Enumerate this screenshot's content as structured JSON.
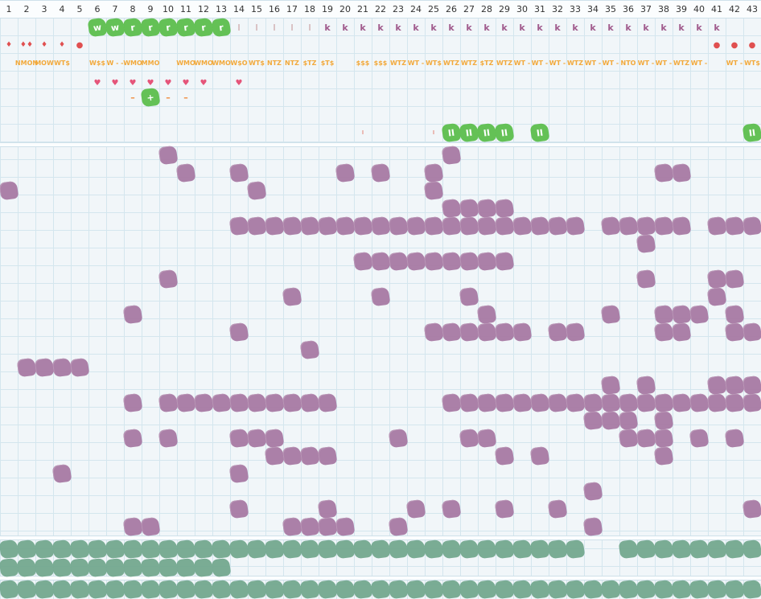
{
  "columns": [
    "1",
    "2",
    "3",
    "4",
    "5",
    "6",
    "7",
    "8",
    "9",
    "10",
    "11",
    "12",
    "13",
    "14",
    "15",
    "16",
    "17",
    "18",
    "19",
    "20",
    "21",
    "22",
    "23",
    "24",
    "25",
    "26",
    "27",
    "28",
    "29",
    "30",
    "31",
    "32",
    "33",
    "34",
    "35",
    "36",
    "37",
    "38",
    "39",
    "40",
    "41",
    "42",
    "43"
  ],
  "colors": {
    "grid_line": "#d4e6ee",
    "background": "#f1f6f9",
    "purple_block": "#a87aa4",
    "green_block": "#5dbf4e",
    "teal_block": "#73a88e",
    "orange_text": "#f2a93b",
    "heart": "#e5557a",
    "k_glyph": "#a05a8c"
  },
  "header_rows": {
    "green_labels": [
      {
        "col": 6,
        "text": "w"
      },
      {
        "col": 7,
        "text": "w"
      },
      {
        "col": 8,
        "text": "r"
      },
      {
        "col": 9,
        "text": "r"
      },
      {
        "col": 10,
        "text": "r"
      },
      {
        "col": 11,
        "text": "r"
      },
      {
        "col": 12,
        "text": "r"
      },
      {
        "col": 13,
        "text": "r"
      }
    ],
    "l_glyphs": [
      {
        "col": 14,
        "text": "l"
      },
      {
        "col": 15,
        "text": "l"
      },
      {
        "col": 16,
        "text": "l"
      },
      {
        "col": 17,
        "text": "l"
      },
      {
        "col": 18,
        "text": "l"
      }
    ],
    "k_glyphs": [
      {
        "col": 19,
        "text": "k"
      },
      {
        "col": 20,
        "text": "k"
      },
      {
        "col": 21,
        "text": "k"
      },
      {
        "col": 22,
        "text": "k"
      },
      {
        "col": 23,
        "text": "k"
      },
      {
        "col": 24,
        "text": "k"
      },
      {
        "col": 25,
        "text": "k"
      },
      {
        "col": 26,
        "text": "k"
      },
      {
        "col": 27,
        "text": "k"
      },
      {
        "col": 28,
        "text": "k"
      },
      {
        "col": 29,
        "text": "k"
      },
      {
        "col": 30,
        "text": "k"
      },
      {
        "col": 31,
        "text": "k"
      },
      {
        "col": 32,
        "text": "k"
      },
      {
        "col": 33,
        "text": "k"
      },
      {
        "col": 34,
        "text": "k"
      },
      {
        "col": 35,
        "text": "k"
      },
      {
        "col": 36,
        "text": "k"
      },
      {
        "col": 37,
        "text": "k"
      },
      {
        "col": 38,
        "text": "k"
      },
      {
        "col": 39,
        "text": "k"
      },
      {
        "col": 40,
        "text": "k"
      },
      {
        "col": 41,
        "text": "k"
      }
    ],
    "weather_icons": [
      {
        "col": 1,
        "text": "♦"
      },
      {
        "col": 2,
        "text": "♦♦"
      },
      {
        "col": 3,
        "text": "♦"
      },
      {
        "col": 4,
        "text": "♦"
      },
      {
        "col": 5,
        "text": "●"
      },
      {
        "col": 41,
        "text": "●"
      },
      {
        "col": 42,
        "text": "●"
      },
      {
        "col": 43,
        "text": "●"
      }
    ],
    "codes": [
      {
        "col": 2,
        "text": "NMON"
      },
      {
        "col": 3,
        "text": "MOW"
      },
      {
        "col": 4,
        "text": "WT$"
      },
      {
        "col": 6,
        "text": "W$$"
      },
      {
        "col": 7,
        "text": "W - -"
      },
      {
        "col": 8,
        "text": "WMO"
      },
      {
        "col": 9,
        "text": "MMO"
      },
      {
        "col": 11,
        "text": "WMO"
      },
      {
        "col": 12,
        "text": "WMO"
      },
      {
        "col": 13,
        "text": "WMO"
      },
      {
        "col": 14,
        "text": "W$O"
      },
      {
        "col": 15,
        "text": "WT$"
      },
      {
        "col": 16,
        "text": "NTZ"
      },
      {
        "col": 17,
        "text": "NTZ"
      },
      {
        "col": 18,
        "text": "$TZ"
      },
      {
        "col": 19,
        "text": "$T$"
      },
      {
        "col": 21,
        "text": "$$$"
      },
      {
        "col": 22,
        "text": "$$$"
      },
      {
        "col": 23,
        "text": "WTZ"
      },
      {
        "col": 24,
        "text": "WT -"
      },
      {
        "col": 25,
        "text": "WT$"
      },
      {
        "col": 26,
        "text": "WTZ"
      },
      {
        "col": 27,
        "text": "WTZ"
      },
      {
        "col": 28,
        "text": "$TZ"
      },
      {
        "col": 29,
        "text": "WTZ"
      },
      {
        "col": 30,
        "text": "WT -"
      },
      {
        "col": 31,
        "text": "WT -"
      },
      {
        "col": 32,
        "text": "WT -"
      },
      {
        "col": 33,
        "text": "WTZ"
      },
      {
        "col": 34,
        "text": "WT -"
      },
      {
        "col": 35,
        "text": "WT -"
      },
      {
        "col": 36,
        "text": "NTO"
      },
      {
        "col": 37,
        "text": "WT -"
      },
      {
        "col": 38,
        "text": "WT -"
      },
      {
        "col": 39,
        "text": "WTZ"
      },
      {
        "col": 40,
        "text": "WT -"
      },
      {
        "col": 42,
        "text": "WT -"
      },
      {
        "col": 43,
        "text": "WT$"
      }
    ],
    "hearts": [
      6,
      7,
      8,
      9,
      10,
      11,
      12,
      14
    ],
    "dashes": [
      {
        "col": 8,
        "text": "–"
      },
      {
        "col": 10,
        "text": "–"
      },
      {
        "col": 11,
        "text": "–"
      }
    ],
    "plus_cells": [
      {
        "col": 9,
        "text": "+"
      }
    ],
    "ticks": [
      {
        "col": 21,
        "text": "ı"
      },
      {
        "col": 25,
        "text": "ı"
      }
    ],
    "pause_cells": [
      {
        "col": 26,
        "text": "II"
      },
      {
        "col": 27,
        "text": "II"
      },
      {
        "col": 28,
        "text": "II"
      },
      {
        "col": 29,
        "text": "II"
      },
      {
        "col": 31,
        "text": "II"
      },
      {
        "col": 43,
        "text": "II"
      }
    ]
  },
  "main_grid": [
    [
      10,
      26
    ],
    [
      11,
      14,
      20,
      22,
      25,
      38,
      39
    ],
    [
      1,
      15,
      25
    ],
    [
      26,
      27,
      28,
      29
    ],
    [
      14,
      15,
      16,
      17,
      18,
      19,
      20,
      21,
      22,
      23,
      24,
      25,
      26,
      27,
      28,
      29,
      30,
      31,
      32,
      33,
      35,
      36,
      37,
      38,
      39,
      41,
      42,
      43
    ],
    [
      37
    ],
    [
      21,
      22,
      23,
      24,
      25,
      26,
      27,
      28,
      29
    ],
    [
      10,
      37,
      41,
      42
    ],
    [
      17,
      22,
      27,
      41
    ],
    [
      8,
      28,
      35,
      38,
      39,
      40,
      42
    ],
    [
      14,
      25,
      26,
      27,
      28,
      29,
      30,
      32,
      33,
      38,
      39,
      42,
      43
    ],
    [
      18
    ],
    [
      2,
      3,
      4,
      5
    ],
    [
      35,
      37,
      41,
      42,
      43
    ],
    [
      8,
      10,
      11,
      12,
      13,
      14,
      15,
      16,
      17,
      18,
      19,
      26,
      27,
      28,
      29,
      30,
      31,
      32,
      33,
      34,
      35,
      36,
      37,
      38,
      39,
      40,
      41,
      42,
      43
    ],
    [
      34,
      35,
      36,
      38
    ],
    [
      8,
      10,
      14,
      15,
      16,
      23,
      27,
      28,
      36,
      37,
      38,
      40,
      42
    ],
    [
      16,
      17,
      18,
      19,
      29,
      31,
      38
    ],
    [
      4,
      14
    ],
    [
      34
    ],
    [
      14,
      19,
      24,
      26,
      29,
      32,
      43
    ],
    [
      8,
      9,
      17,
      18,
      19,
      20,
      23,
      34
    ]
  ],
  "footer_rows": [
    [
      1,
      2,
      3,
      4,
      5,
      6,
      7,
      8,
      9,
      10,
      11,
      12,
      13,
      14,
      15,
      16,
      17,
      18,
      19,
      20,
      21,
      22,
      23,
      24,
      25,
      26,
      27,
      28,
      29,
      30,
      31,
      32,
      33,
      36,
      37,
      38,
      39,
      40,
      41,
      42,
      43
    ],
    [
      1,
      2,
      3,
      4,
      5,
      6,
      7,
      8,
      9,
      10,
      11,
      12,
      13
    ],
    [
      1,
      2,
      3,
      4,
      5,
      6,
      7,
      8,
      9,
      10,
      11,
      12,
      13,
      14,
      15,
      16,
      17,
      18,
      19,
      20,
      21,
      22,
      23,
      24,
      25,
      26,
      27,
      28,
      29,
      30,
      31,
      32,
      33,
      34,
      35,
      36,
      37,
      38,
      39,
      40,
      41,
      42,
      43
    ]
  ]
}
